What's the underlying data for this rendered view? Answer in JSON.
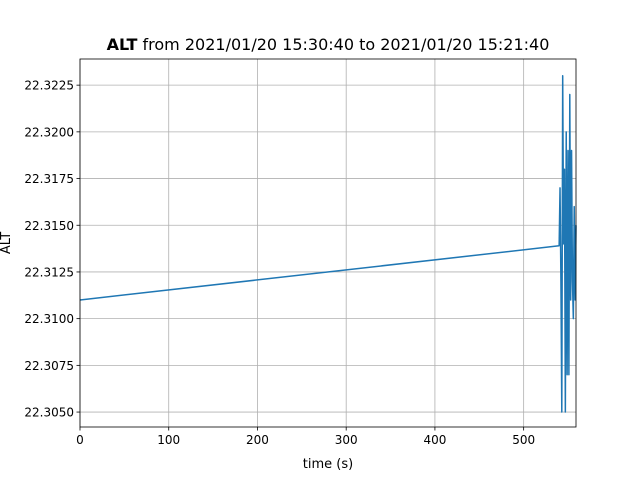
{
  "chart_data": {
    "type": "line",
    "title_bold": "ALT",
    "title_rest": " from 2021/01/20 15:30:40 to 2021/01/20 15:21:40",
    "xlabel": "time (s)",
    "ylabel": "ALT",
    "xlim": [
      0,
      559
    ],
    "ylim": [
      22.3042,
      22.3239
    ],
    "grid": true,
    "line_color": "#1f77b4",
    "x_ticks": [
      0,
      100,
      200,
      300,
      400,
      500
    ],
    "y_ticks": [
      22.305,
      22.3075,
      22.31,
      22.3125,
      22.315,
      22.3175,
      22.32,
      22.3225
    ],
    "y_tick_labels": [
      "22.3050",
      "22.3075",
      "22.3100",
      "22.3125",
      "22.3150",
      "22.3175",
      "22.3200",
      "22.3225"
    ],
    "series": [
      {
        "x": [
          0,
          540,
          541,
          542,
          543,
          544,
          545,
          546,
          547,
          548,
          549,
          550,
          551,
          552,
          553,
          554,
          555,
          556,
          557,
          558,
          559
        ],
        "y": [
          22.311,
          22.3139,
          22.317,
          22.312,
          22.305,
          22.323,
          22.314,
          22.318,
          22.305,
          22.32,
          22.307,
          22.319,
          22.307,
          22.322,
          22.311,
          22.319,
          22.312,
          22.31,
          22.316,
          22.311,
          22.315
        ]
      }
    ]
  }
}
